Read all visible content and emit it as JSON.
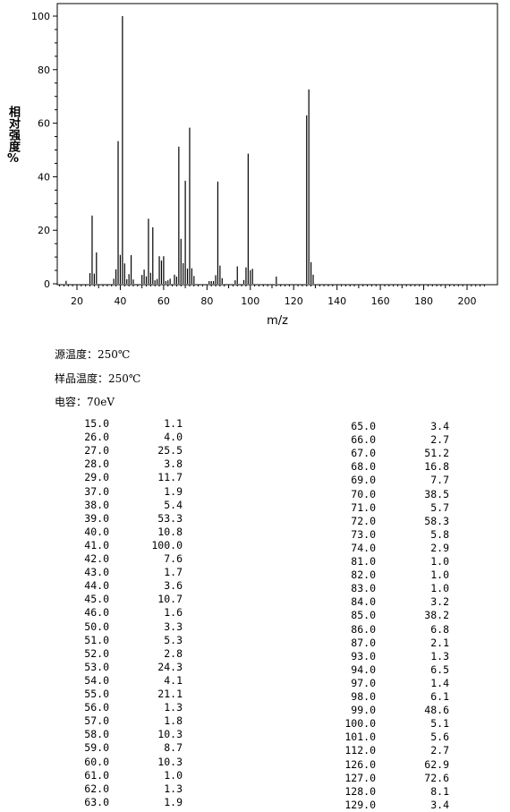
{
  "chart_data": {
    "type": "bar",
    "xlabel": "m/z",
    "ylabel": "相对强度%",
    "xlim": [
      10,
      210
    ],
    "ylim": [
      0,
      100
    ],
    "xticks": [
      20,
      40,
      60,
      80,
      100,
      120,
      140,
      160,
      180,
      200
    ],
    "yticks": [
      0,
      20,
      40,
      60,
      80,
      100
    ],
    "grid": false,
    "points": [
      {
        "mz": 15.0,
        "intensity": 1.1
      },
      {
        "mz": 26.0,
        "intensity": 4.0
      },
      {
        "mz": 27.0,
        "intensity": 25.5
      },
      {
        "mz": 28.0,
        "intensity": 3.8
      },
      {
        "mz": 29.0,
        "intensity": 11.7
      },
      {
        "mz": 37.0,
        "intensity": 1.9
      },
      {
        "mz": 38.0,
        "intensity": 5.4
      },
      {
        "mz": 39.0,
        "intensity": 53.3
      },
      {
        "mz": 40.0,
        "intensity": 10.8
      },
      {
        "mz": 41.0,
        "intensity": 100.0
      },
      {
        "mz": 42.0,
        "intensity": 7.6
      },
      {
        "mz": 43.0,
        "intensity": 1.7
      },
      {
        "mz": 44.0,
        "intensity": 3.6
      },
      {
        "mz": 45.0,
        "intensity": 10.7
      },
      {
        "mz": 46.0,
        "intensity": 1.6
      },
      {
        "mz": 50.0,
        "intensity": 3.3
      },
      {
        "mz": 51.0,
        "intensity": 5.3
      },
      {
        "mz": 52.0,
        "intensity": 2.8
      },
      {
        "mz": 53.0,
        "intensity": 24.3
      },
      {
        "mz": 54.0,
        "intensity": 4.1
      },
      {
        "mz": 55.0,
        "intensity": 21.1
      },
      {
        "mz": 56.0,
        "intensity": 1.3
      },
      {
        "mz": 57.0,
        "intensity": 1.8
      },
      {
        "mz": 58.0,
        "intensity": 10.3
      },
      {
        "mz": 59.0,
        "intensity": 8.7
      },
      {
        "mz": 60.0,
        "intensity": 10.3
      },
      {
        "mz": 61.0,
        "intensity": 1.0
      },
      {
        "mz": 62.0,
        "intensity": 1.3
      },
      {
        "mz": 63.0,
        "intensity": 1.9
      },
      {
        "mz": 65.0,
        "intensity": 3.4
      },
      {
        "mz": 66.0,
        "intensity": 2.7
      },
      {
        "mz": 67.0,
        "intensity": 51.2
      },
      {
        "mz": 68.0,
        "intensity": 16.8
      },
      {
        "mz": 69.0,
        "intensity": 7.7
      },
      {
        "mz": 70.0,
        "intensity": 38.5
      },
      {
        "mz": 71.0,
        "intensity": 5.7
      },
      {
        "mz": 72.0,
        "intensity": 58.3
      },
      {
        "mz": 73.0,
        "intensity": 5.8
      },
      {
        "mz": 74.0,
        "intensity": 2.9
      },
      {
        "mz": 81.0,
        "intensity": 1.0
      },
      {
        "mz": 82.0,
        "intensity": 1.0
      },
      {
        "mz": 83.0,
        "intensity": 1.0
      },
      {
        "mz": 84.0,
        "intensity": 3.2
      },
      {
        "mz": 85.0,
        "intensity": 38.2
      },
      {
        "mz": 86.0,
        "intensity": 6.8
      },
      {
        "mz": 87.0,
        "intensity": 2.1
      },
      {
        "mz": 93.0,
        "intensity": 1.3
      },
      {
        "mz": 94.0,
        "intensity": 6.5
      },
      {
        "mz": 97.0,
        "intensity": 1.4
      },
      {
        "mz": 98.0,
        "intensity": 6.1
      },
      {
        "mz": 99.0,
        "intensity": 48.6
      },
      {
        "mz": 100.0,
        "intensity": 5.1
      },
      {
        "mz": 101.0,
        "intensity": 5.6
      },
      {
        "mz": 112.0,
        "intensity": 2.7
      },
      {
        "mz": 126.0,
        "intensity": 62.9
      },
      {
        "mz": 127.0,
        "intensity": 72.6
      },
      {
        "mz": 128.0,
        "intensity": 8.1
      },
      {
        "mz": 129.0,
        "intensity": 3.4
      }
    ]
  },
  "conditions": {
    "source_temp": "源温度：250℃",
    "sample_temp": "样品温度：250℃",
    "energy": "电容：70eV"
  },
  "table_left": [
    [
      "15.0",
      "1.1"
    ],
    [
      "26.0",
      "4.0"
    ],
    [
      "27.0",
      "25.5"
    ],
    [
      "28.0",
      "3.8"
    ],
    [
      "29.0",
      "11.7"
    ],
    [
      "37.0",
      "1.9"
    ],
    [
      "38.0",
      "5.4"
    ],
    [
      "39.0",
      "53.3"
    ],
    [
      "40.0",
      "10.8"
    ],
    [
      "41.0",
      "100.0"
    ],
    [
      "42.0",
      "7.6"
    ],
    [
      "43.0",
      "1.7"
    ],
    [
      "44.0",
      "3.6"
    ],
    [
      "45.0",
      "10.7"
    ],
    [
      "46.0",
      "1.6"
    ],
    [
      "50.0",
      "3.3"
    ],
    [
      "51.0",
      "5.3"
    ],
    [
      "52.0",
      "2.8"
    ],
    [
      "53.0",
      "24.3"
    ],
    [
      "54.0",
      "4.1"
    ],
    [
      "55.0",
      "21.1"
    ],
    [
      "56.0",
      "1.3"
    ],
    [
      "57.0",
      "1.8"
    ],
    [
      "58.0",
      "10.3"
    ],
    [
      "59.0",
      "8.7"
    ],
    [
      "60.0",
      "10.3"
    ],
    [
      "61.0",
      "1.0"
    ],
    [
      "62.0",
      "1.3"
    ],
    [
      "63.0",
      "1.9"
    ]
  ],
  "table_right": [
    [
      "65.0",
      "3.4"
    ],
    [
      "66.0",
      "2.7"
    ],
    [
      "67.0",
      "51.2"
    ],
    [
      "68.0",
      "16.8"
    ],
    [
      "69.0",
      "7.7"
    ],
    [
      "70.0",
      "38.5"
    ],
    [
      "71.0",
      "5.7"
    ],
    [
      "72.0",
      "58.3"
    ],
    [
      "73.0",
      "5.8"
    ],
    [
      "74.0",
      "2.9"
    ],
    [
      "81.0",
      "1.0"
    ],
    [
      "82.0",
      "1.0"
    ],
    [
      "83.0",
      "1.0"
    ],
    [
      "84.0",
      "3.2"
    ],
    [
      "85.0",
      "38.2"
    ],
    [
      "86.0",
      "6.8"
    ],
    [
      "87.0",
      "2.1"
    ],
    [
      "93.0",
      "1.3"
    ],
    [
      "94.0",
      "6.5"
    ],
    [
      "97.0",
      "1.4"
    ],
    [
      "98.0",
      "6.1"
    ],
    [
      "99.0",
      "48.6"
    ],
    [
      "100.0",
      "5.1"
    ],
    [
      "101.0",
      "5.6"
    ],
    [
      "112.0",
      "2.7"
    ],
    [
      "126.0",
      "62.9"
    ],
    [
      "127.0",
      "72.6"
    ],
    [
      "128.0",
      "8.1"
    ],
    [
      "129.0",
      "3.4"
    ]
  ]
}
